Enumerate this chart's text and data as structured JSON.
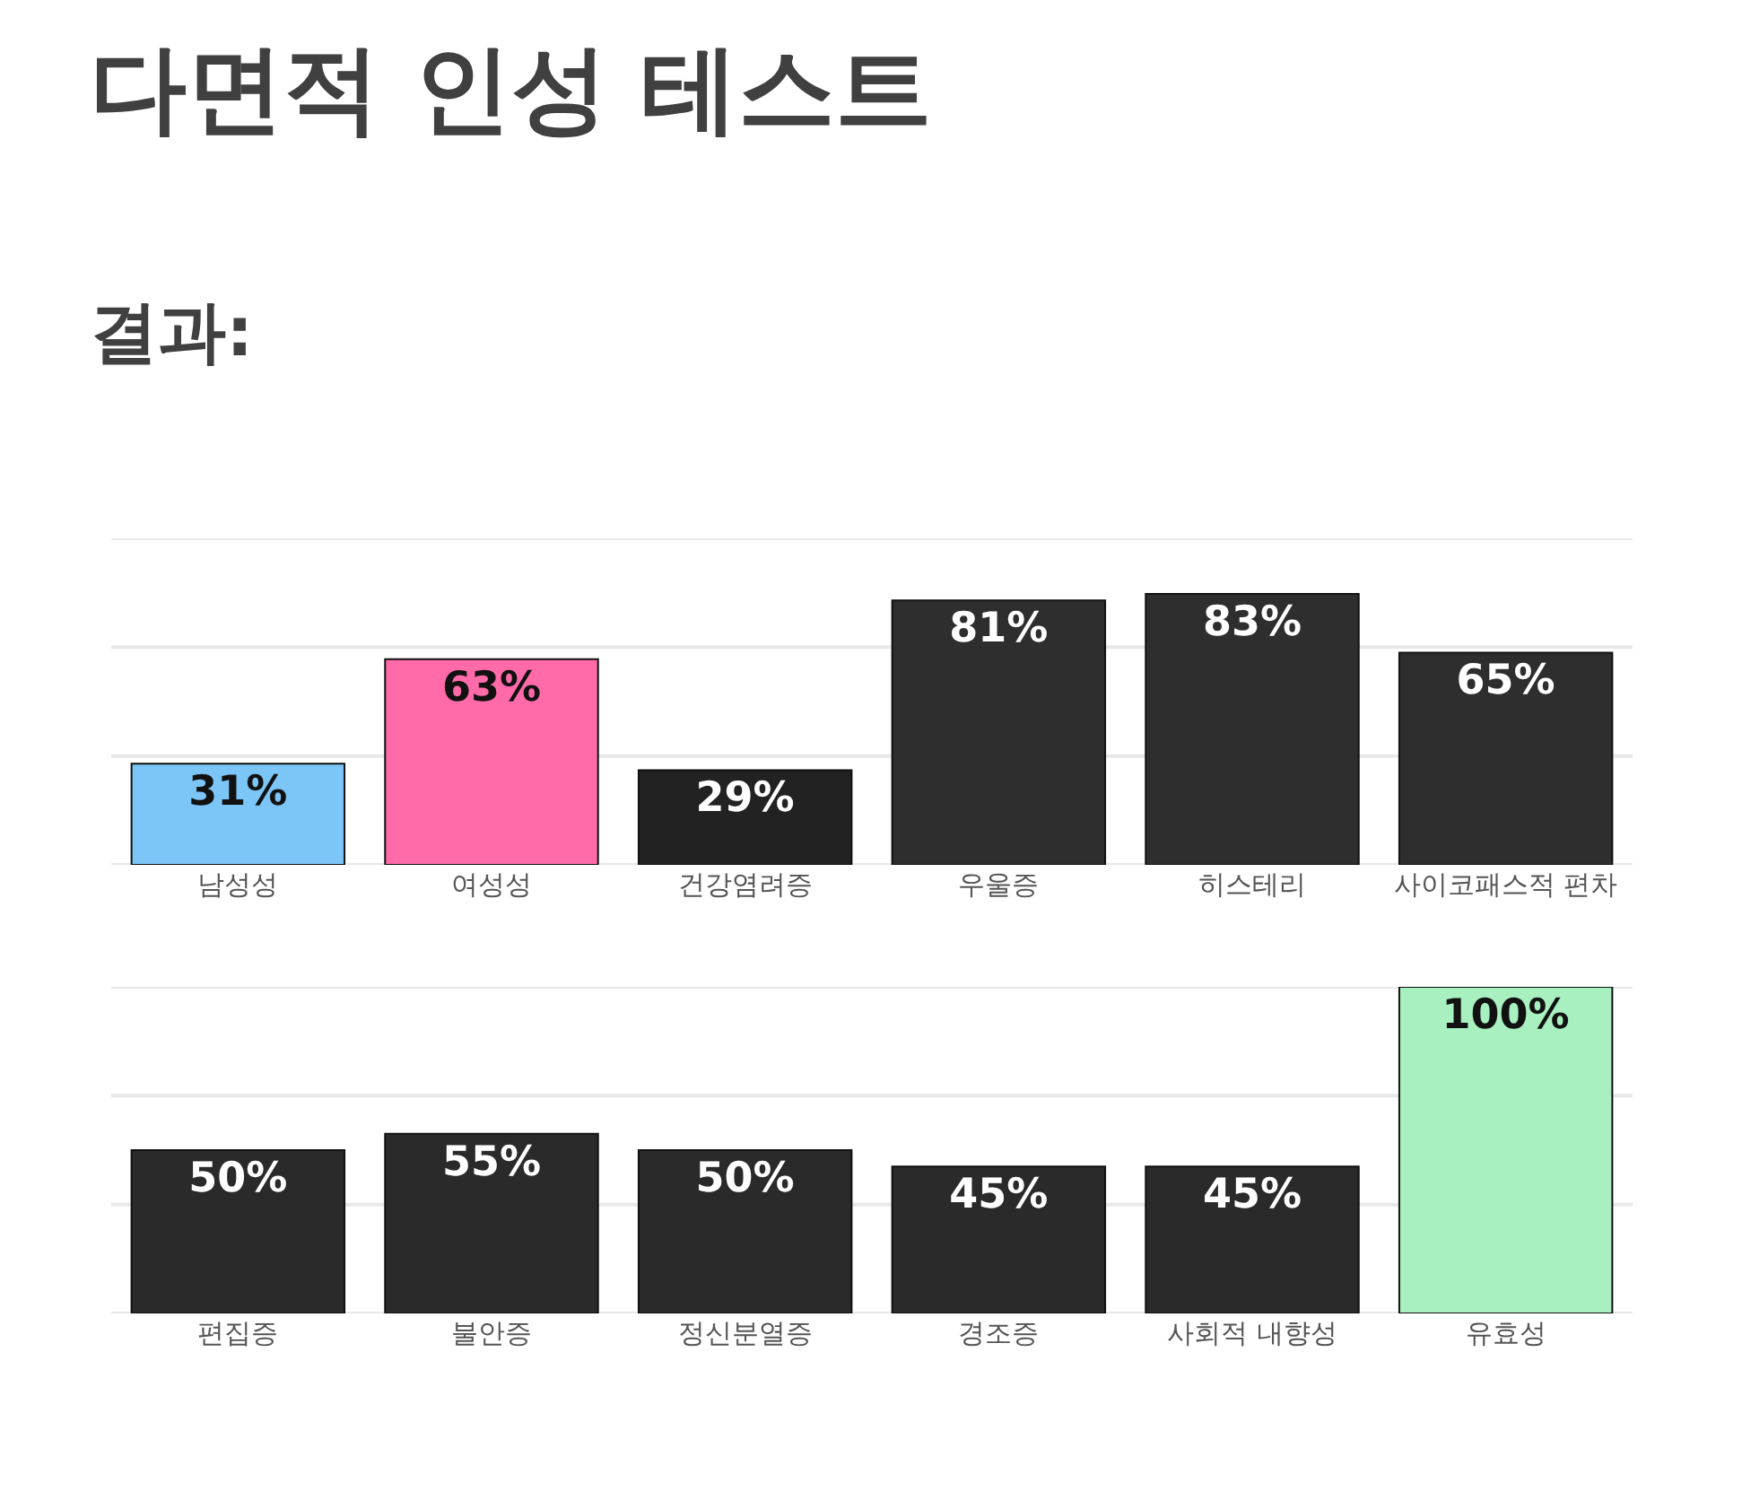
{
  "chart_data": [
    {
      "type": "bar",
      "title": "다면적 인성 테스트",
      "subtitle": "결과:",
      "categories": [
        "남성성",
        "여성성",
        "건강염려증",
        "우울증",
        "히스테리",
        "사이코패스적 편차"
      ],
      "values": [
        31,
        63,
        29,
        81,
        83,
        65
      ],
      "value_labels": [
        "31%",
        "63%",
        "29%",
        "81%",
        "83%",
        "65%"
      ],
      "colors": [
        "#7cc6f7",
        "#ff6aa8",
        "#222222",
        "#2e2e2e",
        "#2e2e2e",
        "#2e2e2e"
      ],
      "ylim": [
        0,
        100
      ],
      "yticks": [
        0,
        {
          "value": 33.3,
          "label": null
        },
        {
          "value": 66.7,
          "label": null
        },
        {
          "value": 100,
          "label": null
        }
      ],
      "grid": "y",
      "tick_labels": "x"
    },
    {
      "type": "bar",
      "categories": [
        "편집증",
        "불안증",
        "정신분열증",
        "경조증",
        "사회적 내향성",
        "유효성"
      ],
      "values": [
        50,
        55,
        50,
        45,
        45,
        100
      ],
      "value_labels": [
        "50%",
        "55%",
        "50%",
        "45%",
        "45%",
        "100%"
      ],
      "colors": [
        "#2a2a2a",
        "#2a2a2a",
        "#2a2a2a",
        "#2a2a2a",
        "#2a2a2a",
        "#a8f0c0"
      ],
      "ylim": [
        0,
        100
      ],
      "yticks": [
        0,
        {
          "value": 33.3,
          "label": null
        },
        {
          "value": 66.7,
          "label": null
        },
        {
          "value": 100,
          "label": null
        }
      ],
      "grid": "y",
      "tick_labels": "x"
    }
  ]
}
